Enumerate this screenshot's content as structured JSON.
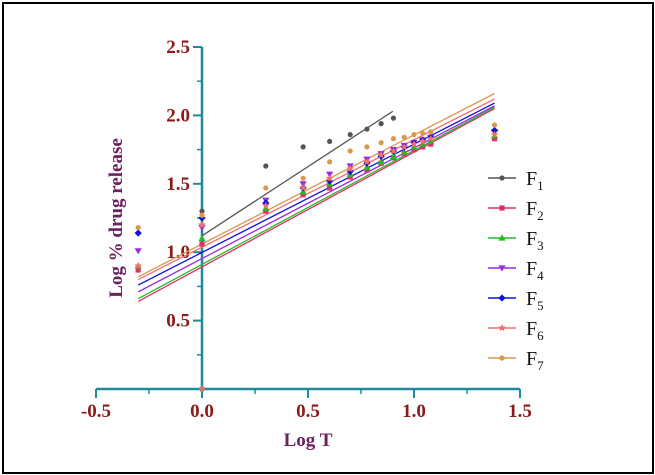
{
  "chart_data": {
    "type": "scatter",
    "title": "",
    "xlabel": "Log T",
    "ylabel": "Log % drug release",
    "xlim": [
      -0.5,
      1.5
    ],
    "ylim": [
      0,
      2.5
    ],
    "xticks": [
      "-0.5",
      "0.0",
      "0.5",
      "1.0",
      "1.5"
    ],
    "yticks": [
      "0.5",
      "1.0",
      "1.5",
      "2.0",
      "2.5"
    ],
    "legend_position": "right",
    "series": [
      {
        "name": "F1",
        "base": "F",
        "sub": "1",
        "color": "#555555",
        "marker": "circle",
        "x": [
          0.0,
          0.301,
          0.477,
          0.602,
          0.699,
          0.778,
          0.845,
          0.903
        ],
        "y": [
          1.3,
          1.63,
          1.77,
          1.81,
          1.86,
          1.9,
          1.94,
          1.98
        ],
        "fit": [
          [
            0.0,
            1.12
          ],
          [
            0.9,
            2.03
          ]
        ]
      },
      {
        "name": "F2",
        "base": "F",
        "sub": "2",
        "color": "#e0306a",
        "marker": "square",
        "x": [
          -0.301,
          0.0,
          0.301,
          0.477,
          0.602,
          0.699,
          0.778,
          0.845,
          0.903,
          0.954,
          1.0,
          1.041,
          1.079,
          1.38
        ],
        "y": [
          0.87,
          1.06,
          1.3,
          1.42,
          1.47,
          1.55,
          1.6,
          1.65,
          1.69,
          1.72,
          1.75,
          1.77,
          1.79,
          1.83
        ],
        "fit": [
          [
            -0.301,
            0.64
          ],
          [
            1.38,
            2.05
          ]
        ]
      },
      {
        "name": "F3",
        "base": "F",
        "sub": "3",
        "color": "#22bb22",
        "marker": "triangle-up",
        "x": [
          -0.301,
          0.0,
          0.301,
          0.477,
          0.602,
          0.699,
          0.778,
          0.845,
          0.903,
          0.954,
          1.0,
          1.041,
          1.079,
          1.38
        ],
        "y": [
          0.9,
          1.1,
          1.32,
          1.44,
          1.5,
          1.57,
          1.62,
          1.66,
          1.7,
          1.73,
          1.77,
          1.79,
          1.81,
          1.85
        ],
        "fit": [
          [
            -0.301,
            0.66
          ],
          [
            1.38,
            2.06
          ]
        ]
      },
      {
        "name": "F4",
        "base": "F",
        "sub": "4",
        "color": "#9a2be2",
        "marker": "triangle-down",
        "x": [
          -0.301,
          0.0,
          0.301,
          0.477,
          0.602,
          0.699,
          0.778,
          0.845,
          0.903,
          0.954,
          1.0,
          1.041,
          1.079,
          1.38
        ],
        "y": [
          1.01,
          1.18,
          1.38,
          1.5,
          1.57,
          1.63,
          1.68,
          1.72,
          1.75,
          1.78,
          1.8,
          1.82,
          1.84,
          1.88
        ],
        "fit": [
          [
            -0.301,
            0.71
          ],
          [
            1.38,
            2.07
          ]
        ]
      },
      {
        "name": "F5",
        "base": "F",
        "sub": "5",
        "color": "#1010dd",
        "marker": "diamond",
        "x": [
          -0.301,
          0.0,
          0.301,
          0.477,
          0.602,
          0.699,
          0.778,
          0.845,
          0.903,
          0.954,
          1.0,
          1.041,
          1.079,
          1.38
        ],
        "y": [
          1.14,
          1.25,
          1.36,
          1.47,
          1.52,
          1.59,
          1.65,
          1.7,
          1.74,
          1.77,
          1.8,
          1.82,
          1.84,
          1.89
        ],
        "fit": [
          [
            -0.301,
            0.76
          ],
          [
            1.38,
            2.09
          ]
        ]
      },
      {
        "name": "F6",
        "base": "F",
        "sub": "6",
        "color": "#f07070",
        "marker": "star",
        "x": [
          -0.301,
          0.0,
          0.301,
          0.477,
          0.602,
          0.699,
          0.778,
          0.845,
          0.903,
          0.954,
          1.0,
          1.041,
          1.079,
          1.38
        ],
        "y": [
          0.9,
          1.2,
          1.34,
          1.47,
          1.54,
          1.61,
          1.66,
          1.71,
          1.74,
          1.77,
          1.79,
          1.81,
          1.83,
          1.86
        ],
        "fit": [
          [
            -0.301,
            0.8
          ],
          [
            1.38,
            2.12
          ]
        ]
      },
      {
        "name": "F7",
        "base": "F",
        "sub": "7",
        "color": "#d9984e",
        "marker": "circle",
        "x": [
          -0.301,
          0.0,
          0.301,
          0.477,
          0.602,
          0.699,
          0.778,
          0.845,
          0.903,
          0.954,
          1.0,
          1.041,
          1.079,
          1.38
        ],
        "y": [
          1.18,
          1.27,
          1.47,
          1.54,
          1.66,
          1.74,
          1.77,
          1.8,
          1.83,
          1.84,
          1.86,
          1.87,
          1.88,
          1.93
        ],
        "fit": [
          [
            -0.301,
            0.82
          ],
          [
            1.38,
            2.16
          ]
        ]
      }
    ]
  }
}
